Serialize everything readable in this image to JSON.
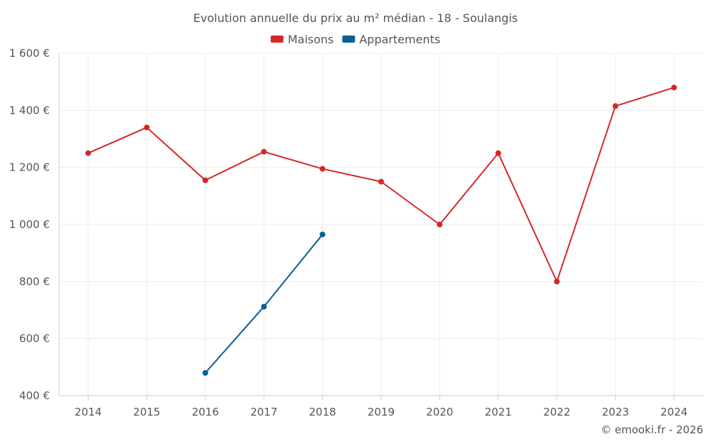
{
  "chart_data": {
    "type": "line",
    "title": "Evolution annuelle du prix au m² médian - 18 - Soulangis",
    "x": [
      "2014",
      "2015",
      "2016",
      "2017",
      "2018",
      "2019",
      "2020",
      "2021",
      "2022",
      "2023",
      "2024"
    ],
    "ylim": [
      400,
      1600
    ],
    "yticks": [
      400,
      600,
      800,
      1000,
      1200,
      1400,
      1600
    ],
    "ytick_labels": [
      "400 €",
      "600 €",
      "800 €",
      "1 000 €",
      "1 200 €",
      "1 400 €",
      "1 600 €"
    ],
    "grid": true,
    "legend_position": "top-center",
    "series": [
      {
        "name": "Maisons",
        "color": "#d62728",
        "values": [
          1250,
          1340,
          1155,
          1255,
          1195,
          1150,
          1000,
          1250,
          800,
          1415,
          1480
        ]
      },
      {
        "name": "Appartements",
        "color": "#0a5f96",
        "values": [
          null,
          null,
          480,
          712,
          965,
          null,
          null,
          null,
          null,
          null,
          null
        ]
      }
    ]
  },
  "credit": "© emooki.fr - 2026"
}
